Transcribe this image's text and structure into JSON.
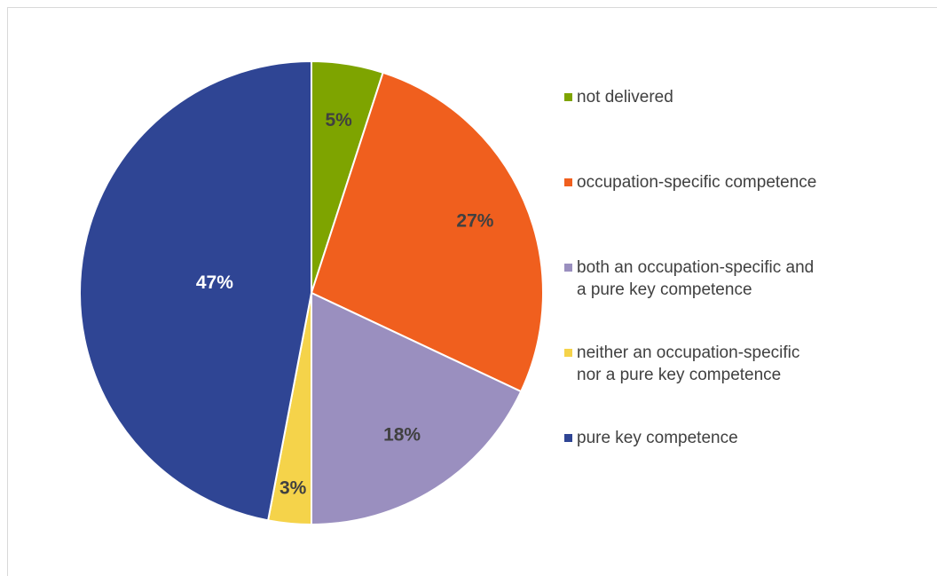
{
  "chart_data": {
    "type": "pie",
    "categories": [
      "not delivered",
      "occupation-specific competence",
      "both an occupation-specific and\na pure key competence",
      "neither an occupation-specific\nnor a pure key competence",
      "pure key competence"
    ],
    "values": [
      5,
      27,
      18,
      3,
      47
    ],
    "value_labels": [
      "5%",
      "27%",
      "18%",
      "3%",
      "47%"
    ],
    "colors": [
      "#7ea400",
      "#f05f1e",
      "#9a8fbf",
      "#f5d34a",
      "#2f4594"
    ],
    "legend": "right"
  }
}
